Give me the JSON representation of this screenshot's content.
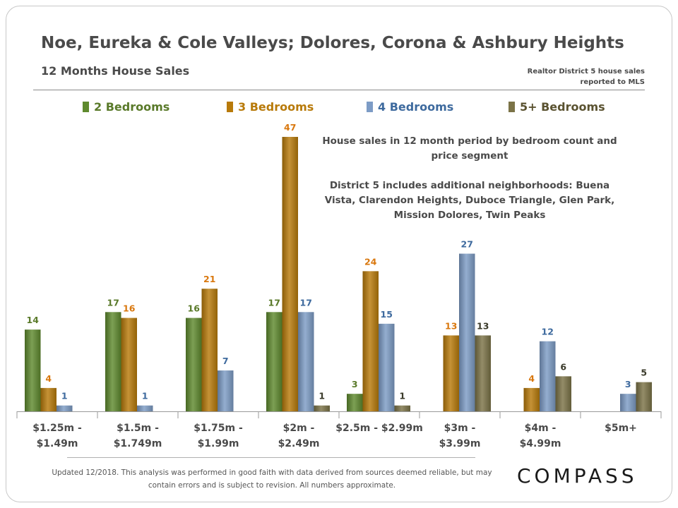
{
  "header": {
    "title": "Noe, Eureka & Cole Valleys; Dolores, Corona & Ashbury Heights",
    "subtitle": "12 Months House Sales",
    "source_line1": "Realtor District 5 house sales",
    "source_line2": "reported to MLS"
  },
  "annotation": {
    "line1": "House sales in 12 month period by bedroom count and price segment",
    "line2": "District 5 includes additional neighborhoods:  Buena Vista, Clarendon Heights, Duboce Triangle, Glen Park, Mission Dolores, Twin Peaks"
  },
  "footer": {
    "note": "Updated 12/2018. This analysis was performed in good faith with data derived from sources deemed reliable, but may contain errors and is subject to revision. All numbers approximate.",
    "logo": "COMPASS"
  },
  "colors": {
    "2br": "#5f8a2e",
    "3br": "#b87a0a",
    "4br": "#7d9cc6",
    "5br": "#7b7347",
    "label_2br": "#5a7a2a",
    "label_3br": "#d9780f",
    "label_4br": "#3e6a9e",
    "label_5br": "#3a3a2a"
  },
  "chart_data": {
    "type": "bar",
    "categories": [
      [
        "$1.25m -",
        "$1.49m"
      ],
      [
        "$1.5m -",
        "$1.749m"
      ],
      [
        "$1.75m -",
        "$1.99m"
      ],
      [
        "$2m -",
        "$2.49m"
      ],
      [
        "$2.5m - $2.99m"
      ],
      [
        "$3m -",
        "$3.99m"
      ],
      [
        "$4m -",
        "$4.99m"
      ],
      [
        "$5m+"
      ]
    ],
    "series": [
      {
        "name": "2 Bedrooms",
        "key": "2br",
        "values": [
          14,
          17,
          16,
          17,
          3,
          null,
          null,
          null
        ]
      },
      {
        "name": "3 Bedrooms",
        "key": "3br",
        "values": [
          4,
          16,
          21,
          47,
          24,
          13,
          4,
          null
        ]
      },
      {
        "name": "4 Bedrooms",
        "key": "4br",
        "values": [
          1,
          1,
          7,
          17,
          15,
          27,
          12,
          3
        ]
      },
      {
        "name": "5+ Bedrooms",
        "key": "5br",
        "values": [
          null,
          null,
          null,
          1,
          1,
          13,
          6,
          5
        ]
      }
    ],
    "ylim": [
      0,
      47
    ],
    "grid": false,
    "legend": "top"
  }
}
